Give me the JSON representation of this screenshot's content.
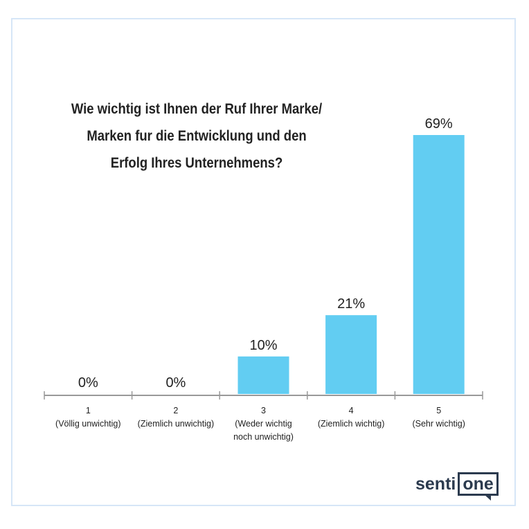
{
  "chart_data": {
    "type": "bar",
    "title": "Wie wichtig ist Ihnen der Ruf Ihrer Marke/ Marken fur die Entwicklung und den Erfolg Ihres Unternehmens?",
    "title_lines": [
      "Wie wichtig ist Ihnen der Ruf Ihrer Marke/",
      "Marken fur die Entwicklung und den",
      "Erfolg Ihres Unternehmens?"
    ],
    "categories": [
      [
        "1",
        "(Völlig unwichtig)"
      ],
      [
        "2",
        "(Ziemlich unwichtig)"
      ],
      [
        "3",
        "(Weder wichtig",
        "noch unwichtig)"
      ],
      [
        "4",
        "(Ziemlich wichtig)"
      ],
      [
        "5",
        "(Sehr wichtig)"
      ]
    ],
    "values": [
      0,
      0,
      10,
      21,
      69
    ],
    "data_labels": [
      "0%",
      "0%",
      "10%",
      "21%",
      "69%"
    ],
    "ylim": [
      0,
      69
    ],
    "xlabel": "",
    "ylabel": "",
    "grid": false,
    "bar_color": "#62cdf2"
  },
  "logo": {
    "part1": "senti",
    "part2": "one"
  }
}
